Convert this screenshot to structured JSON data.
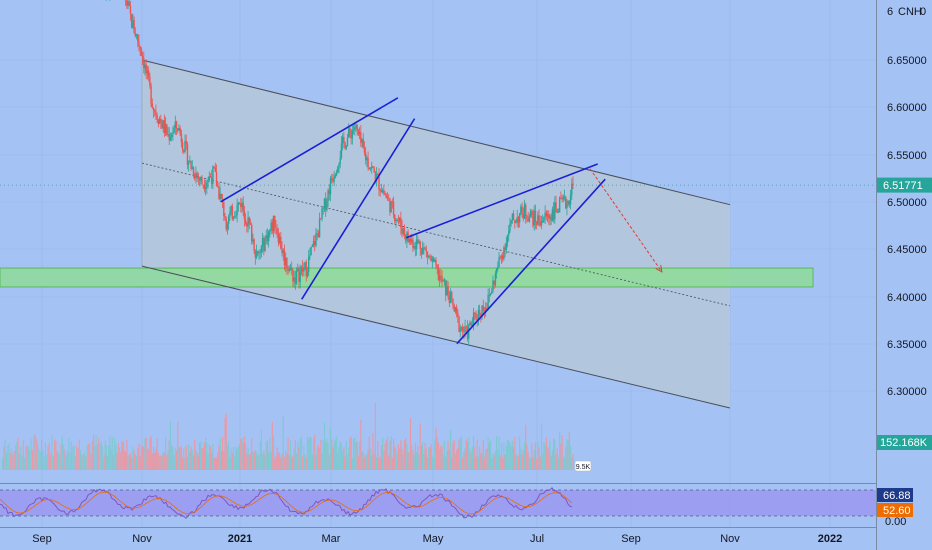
{
  "chart_data": {
    "type": "candlestick",
    "symbol_label": "CNH",
    "x_tick_labels": [
      "Sep",
      "Nov",
      "2021",
      "Mar",
      "May",
      "Jul",
      "Sep",
      "Nov",
      "2022"
    ],
    "y_tick_labels": [
      "6.65000",
      "6.60000",
      "6.55000",
      "6.50000",
      "6.45000",
      "6.40000",
      "6.35000",
      "6.30000"
    ],
    "y_top_label": "6",
    "ylim": [
      6.26,
      6.705
    ],
    "last_price": 6.51771,
    "last_price_label": "6.51771",
    "volume_label": "152.168K",
    "volume_tag": "9.5K",
    "rsi_labels": [
      "66.88",
      "52.60",
      "0.00"
    ],
    "rsi_values": [
      66.88,
      52.6
    ],
    "support_zone": [
      6.41,
      6.43
    ],
    "channel": {
      "upper": [
        [
          "2020-11-01",
          6.65
        ],
        [
          "2021-11-01",
          6.497
        ]
      ],
      "lower": [
        [
          "2020-11-01",
          6.432
        ],
        [
          "2021-11-01",
          6.282
        ]
      ],
      "mid": [
        [
          "2020-11-01",
          6.541
        ],
        [
          "2021-11-01",
          6.39
        ]
      ]
    },
    "wedges": [
      [
        [
          "2020-12-20",
          6.5
        ],
        [
          "2021-04-10",
          6.61
        ]
      ],
      [
        [
          "2021-02-10",
          6.397
        ],
        [
          "2021-04-20",
          6.588
        ]
      ],
      [
        [
          "2021-04-15",
          6.462
        ],
        [
          "2021-08-10",
          6.54
        ]
      ],
      [
        [
          "2021-05-15",
          6.35
        ],
        [
          "2021-08-15",
          6.524
        ]
      ]
    ],
    "projection": [
      [
        "2021-08-05",
        6.535
      ],
      [
        "2021-09-20",
        6.426
      ]
    ],
    "colors": {
      "background": "#a4c2f4",
      "channel_fill": "#b4c7dc",
      "zone_fill": "#8fdc98",
      "candle_up": "#26a69a",
      "candle_down": "#ef5350",
      "trend_line": "#1a20d6",
      "projection": "#e53935",
      "price_badge": "#26a69a",
      "rsi_panel": "#9a93f0",
      "rsi_line": "#7e57c2"
    }
  }
}
